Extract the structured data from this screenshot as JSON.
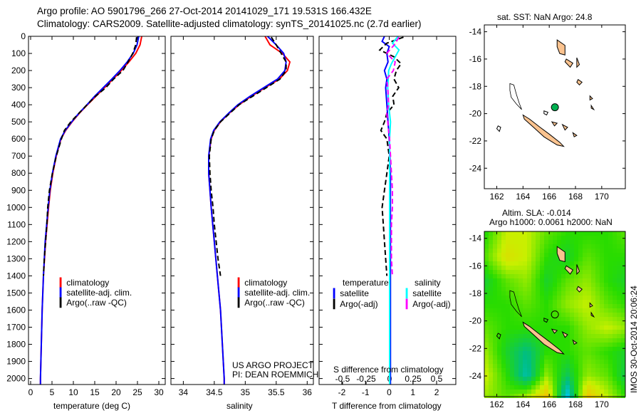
{
  "chart_data": [
    {
      "type": "line",
      "title": "Argo profile: AO 5901796_266 27-Oct-2014 20141029_171 19.531S 166.432E",
      "subtitle": "Climatology: CARS2009. Satellite-adjusted climatology: synTS_20141025.nc (2.7d earlier)",
      "ylabel": "",
      "ylim": [
        0,
        2035
      ],
      "yticks": [
        0,
        100,
        200,
        300,
        400,
        500,
        600,
        700,
        800,
        900,
        1000,
        1100,
        1200,
        1300,
        1400,
        1500,
        1600,
        1700,
        1800,
        1900,
        2000
      ],
      "panels": [
        {
          "xlabel": "temperature (deg C)",
          "xlim": [
            -0.5,
            31.5
          ],
          "xticks": [
            0,
            5,
            10,
            15,
            20,
            25,
            30
          ],
          "legend": [
            "climatology",
            "satellite-adj. clim.",
            "Argo(..raw -QC)"
          ],
          "series": [
            {
              "name": "climatology",
              "color": "#ff0000",
              "dash": false,
              "depth": [
                0,
                50,
                100,
                150,
                200,
                250,
                300,
                350,
                400,
                450,
                500,
                550,
                600,
                700,
                800,
                900,
                1000,
                1200,
                1400,
                1600,
                1800,
                2000,
                2035
              ],
              "values": [
                26,
                25.6,
                24.6,
                23,
                21.2,
                19.3,
                17.3,
                15.3,
                13.3,
                11.4,
                9.7,
                8.2,
                7.1,
                6,
                5.2,
                4.6,
                4.2,
                3.5,
                3,
                2.7,
                2.5,
                2.3,
                2.3
              ]
            },
            {
              "name": "satellite-adj. clim.",
              "color": "#0000ff",
              "dash": false,
              "depth": [
                0,
                50,
                100,
                150,
                200,
                250,
                300,
                350,
                400,
                450,
                500,
                550,
                600,
                700,
                800,
                900,
                1000,
                1200,
                1400,
                1600,
                1800,
                2000,
                2035
              ],
              "values": [
                25.3,
                24.9,
                24,
                22.6,
                20.9,
                19,
                17,
                15,
                13.2,
                11.3,
                9.6,
                8.1,
                7,
                5.9,
                5.1,
                4.5,
                4.1,
                3.4,
                3,
                2.7,
                2.5,
                2.3,
                2.3
              ]
            },
            {
              "name": "Argo(..raw -QC)",
              "color": "#000000",
              "dash": true,
              "depth": [
                5,
                50,
                100,
                150,
                200,
                250,
                300,
                350,
                400,
                450,
                500,
                550,
                600,
                700,
                800,
                900,
                1000,
                1100,
                1200,
                1300,
                1400
              ],
              "values": [
                24.8,
                24.6,
                23.9,
                22.8,
                21.6,
                19.4,
                17.6,
                15.2,
                13.2,
                11.3,
                9.4,
                7.9,
                7.2,
                6,
                5.1,
                4.4,
                4,
                3.8,
                3.5,
                3.2,
                3
              ]
            }
          ]
        },
        {
          "xlabel": "salinity",
          "xlim": [
            33.8,
            36.1
          ],
          "xticks": [
            34,
            34.5,
            35,
            35.5,
            36
          ],
          "legend": [
            "climatology",
            "satellite-adj. clim.",
            "Argo(..raw -QC)"
          ],
          "credit": [
            "US ARGO PROJECT",
            "PI: DEAN ROEMMICH"
          ],
          "series": [
            {
              "name": "climatology",
              "color": "#ff0000",
              "dash": false,
              "depth": [
                0,
                50,
                100,
                150,
                200,
                250,
                300,
                350,
                400,
                450,
                500,
                550,
                600,
                700,
                800,
                900,
                1000,
                1200,
                1400,
                1600,
                1800,
                2000,
                2035
              ],
              "values": [
                35.32,
                35.4,
                35.6,
                35.72,
                35.68,
                35.55,
                35.32,
                35.1,
                34.9,
                34.74,
                34.6,
                34.5,
                34.45,
                34.41,
                34.41,
                34.43,
                34.45,
                34.5,
                34.55,
                34.6,
                34.63,
                34.66,
                34.66
              ]
            },
            {
              "name": "satellite-adj. clim.",
              "color": "#0000ff",
              "dash": false,
              "depth": [
                0,
                50,
                100,
                150,
                200,
                250,
                300,
                350,
                400,
                450,
                500,
                550,
                600,
                700,
                800,
                900,
                1000,
                1200,
                1400,
                1600,
                1800,
                2000,
                2035
              ],
              "values": [
                35.36,
                35.5,
                35.62,
                35.66,
                35.64,
                35.52,
                35.3,
                35.08,
                34.88,
                34.73,
                34.59,
                34.49,
                34.44,
                34.41,
                34.41,
                34.43,
                34.45,
                34.5,
                34.55,
                34.6,
                34.63,
                34.66,
                34.66
              ]
            },
            {
              "name": "Argo(..raw -QC)",
              "color": "#000000",
              "dash": true,
              "depth": [
                5,
                50,
                100,
                150,
                200,
                250,
                300,
                350,
                400,
                450,
                500,
                550,
                600,
                700,
                800,
                900,
                1000,
                1100,
                1200,
                1300,
                1400
              ],
              "values": [
                35.42,
                35.5,
                35.58,
                35.66,
                35.66,
                35.56,
                35.34,
                35.12,
                34.9,
                34.75,
                34.6,
                34.5,
                34.45,
                34.42,
                34.43,
                34.45,
                34.48,
                34.5,
                34.53,
                34.56,
                34.6
              ]
            }
          ]
        },
        {
          "xlabel": "T difference from climatology",
          "xlim": [
            -2.96,
            2.81
          ],
          "xticks": [
            -2,
            -1,
            0,
            1,
            2
          ],
          "x2label": "S difference from climatology",
          "x2ticks": [
            -0.5,
            -0.25,
            0,
            0.25,
            0.5
          ],
          "x2ticklabels": [
            "-0.5",
            "-0.25",
            "0",
            "0.25",
            "0.5"
          ],
          "legend_headers": [
            "temperature",
            "salinity"
          ],
          "legend": [
            "satellite",
            "Argo(-adj)",
            "satellite",
            "Argo(-adj)"
          ],
          "series": [
            {
              "name": "T satellite",
              "color": "#0000ff",
              "dash": false,
              "depth": [
                0,
                30,
                60,
                100,
                150,
                200,
                250,
                300,
                400,
                500,
                600,
                800,
                1000,
                1500,
                2000,
                2035
              ],
              "values": [
                -0.2,
                -0.3,
                0,
                -0.1,
                -0.05,
                -0.2,
                -0.1,
                -0.15,
                -0.1,
                -0.05,
                0,
                0.05,
                0.05,
                0.05,
                0.05,
                0.05
              ]
            },
            {
              "name": "T Argo(-adj)",
              "color": "#000000",
              "dash": true,
              "depth": [
                5,
                40,
                80,
                120,
                160,
                200,
                250,
                300,
                350,
                400,
                450,
                500,
                550,
                600,
                700,
                800,
                900,
                1000,
                1100,
                1200,
                1300,
                1400
              ],
              "values": [
                0.6,
                -0.1,
                -0.4,
                0.2,
                0.5,
                0.3,
                0.2,
                0.4,
                0.15,
                0.2,
                -0.1,
                -0.2,
                -0.35,
                -0.1,
                0,
                -0.1,
                -0.2,
                -0.3,
                -0.25,
                -0.2,
                -0.15,
                -0.1
              ]
            },
            {
              "name": "S satellite",
              "color": "#00ffff",
              "dash": false,
              "depth": [
                0,
                40,
                80,
                120,
                160,
                200,
                300,
                400,
                500,
                600,
                800,
                1000,
                1500,
                2000,
                2035
              ],
              "values": [
                0.09,
                0.03,
                0.1,
                0.06,
                0.02,
                -0.01,
                -0.02,
                -0.01,
                0.01,
                0.0,
                0.0,
                0.0,
                0.0,
                0.0,
                0.0
              ]
            },
            {
              "name": "S Argo(-adj)",
              "color": "#ff00ff",
              "dash": true,
              "depth": [
                5,
                50,
                100,
                150,
                200,
                250,
                300,
                400,
                450,
                500,
                600,
                700,
                800,
                900,
                1000,
                1100,
                1200,
                1300,
                1400
              ],
              "values": [
                0.1,
                0.05,
                -0.03,
                0.06,
                0.04,
                -0.03,
                -0.02,
                -0.01,
                -0.03,
                -0.02,
                0.0,
                0.01,
                0.02,
                0.03,
                0.03,
                0.02,
                0.02,
                0.02,
                0.03
              ]
            }
          ]
        }
      ]
    },
    {
      "type": "map",
      "title": "sat. SST: NaN Argo: 24.8",
      "lon_range": [
        161.05,
        171.8
      ],
      "lat_range": [
        -25.5,
        -13.5
      ],
      "xticks": [
        162,
        164,
        166,
        168,
        170
      ],
      "yticks": [
        -14,
        -16,
        -18,
        -20,
        -22,
        -24
      ],
      "marker": {
        "lon": 166.432,
        "lat": -19.531,
        "color": "#00b050"
      }
    },
    {
      "type": "heatmap",
      "title": "Altim. SLA: -0.014",
      "subtitle": "Argo h1000: 0.0061 h2000: NaN",
      "lon_range": [
        161.05,
        171.8
      ],
      "lat_range": [
        -25.5,
        -13.5
      ],
      "xticks": [
        162,
        164,
        166,
        168,
        170
      ],
      "yticks": [
        -14,
        -16,
        -18,
        -20,
        -22,
        -24
      ],
      "sla_grid_rows_north_to_south": [
        [
          0.3,
          0.6,
          0.6,
          0.4,
          0.3,
          0.3,
          0.3,
          0.4
        ],
        [
          0.4,
          0.7,
          0.6,
          0.3,
          0.2,
          0.4,
          0.3,
          0.3
        ],
        [
          0.2,
          0.4,
          0.5,
          0.2,
          0.4,
          0.5,
          0.3,
          0.2
        ],
        [
          0.3,
          0.3,
          0.4,
          0.3,
          0.5,
          0.6,
          0.4,
          0.3
        ],
        [
          0.4,
          0.3,
          0.3,
          0.3,
          0.3,
          0.5,
          0.6,
          0.5
        ],
        [
          0.5,
          0.2,
          0.0,
          0.3,
          0.3,
          0.4,
          0.3,
          0.2
        ],
        [
          0.6,
          0.3,
          -0.1,
          0.5,
          0.1,
          0.5,
          0.4,
          0.1
        ],
        [
          0.5,
          0.4,
          0.6,
          0.9,
          -0.3,
          0.9,
          0.6,
          0.3
        ]
      ],
      "marker": {
        "lon": 166.432,
        "lat": -19.531
      }
    },
    {
      "type": "annotation",
      "stamp": "IMOS 30-Oct-2014 20:06:24"
    }
  ]
}
